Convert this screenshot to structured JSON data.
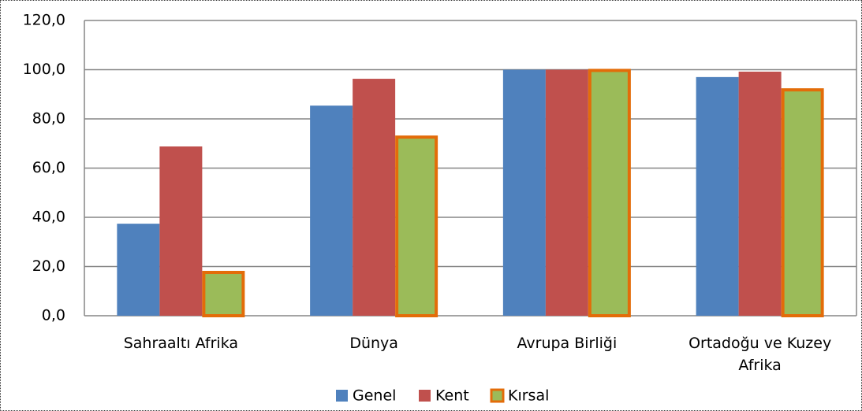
{
  "chart_data": {
    "type": "bar",
    "categories": [
      "Sahraaltı Afrika",
      "Dünya",
      "Avrupa Birliği",
      "Ortadoğu ve Kuzey Afrika"
    ],
    "series": [
      {
        "name": "Genel",
        "color": "#4f81bd",
        "values": [
          37.4,
          85.4,
          100,
          97.0
        ]
      },
      {
        "name": "Kent",
        "color": "#c0504d",
        "values": [
          68.8,
          96.3,
          100,
          99.2
        ]
      },
      {
        "name": "Kırsal",
        "color": "#9bbb59",
        "stroke": "#e36c09",
        "values": [
          17.6,
          72.6,
          99.7,
          91.8
        ]
      }
    ],
    "ylim": [
      0,
      120
    ],
    "yticks": [
      {
        "value": 0,
        "label": "0,0"
      },
      {
        "value": 20,
        "label": "20,0"
      },
      {
        "value": 40,
        "label": "40,0"
      },
      {
        "value": 60,
        "label": "60,0"
      },
      {
        "value": 80,
        "label": "80,0"
      },
      {
        "value": 100,
        "label": "100,0"
      },
      {
        "value": 120,
        "label": "120,0"
      }
    ],
    "grid": true,
    "legend": "bottom"
  }
}
